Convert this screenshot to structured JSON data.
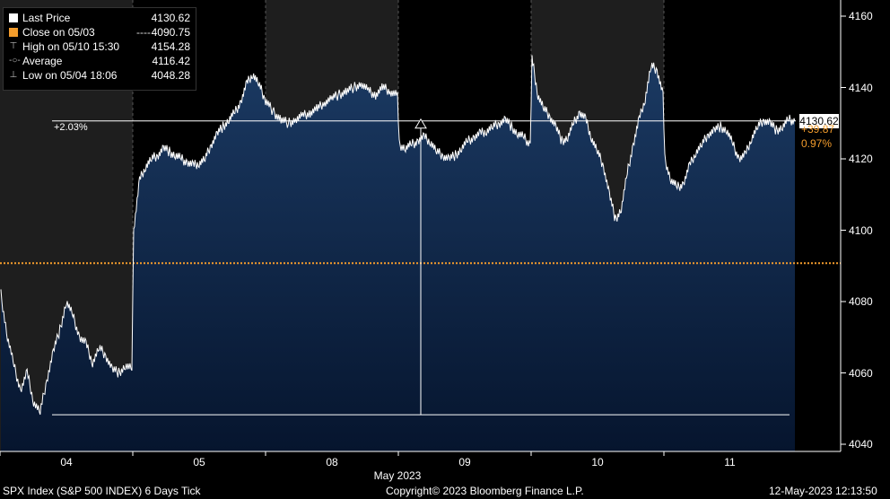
{
  "legend": {
    "last_label": "Last Price",
    "last_value": "4130.62",
    "close_label": "Close on 05/03",
    "close_dash": "----",
    "close_value": "4090.75",
    "high_label": "High on 05/10 15:30",
    "high_value": "4154.28",
    "avg_label": "Average",
    "avg_value": "4116.42",
    "low_label": "Low on 05/04 18:06",
    "low_value": "4048.28",
    "high_icon": "high-marker-icon",
    "avg_icon": "average-marker-icon",
    "low_icon": "low-marker-icon"
  },
  "annotations": {
    "range_pct": "+2.03%",
    "last_price_tag": "4130.62",
    "change_abs": "+39.87",
    "change_pct": "0.97%"
  },
  "footer": {
    "left": "SPX Index (S&P 500 INDEX) 6 Days  Tick",
    "center": "Copyright© 2023 Bloomberg Finance L.P.",
    "right": "12-May-2023 12:13:50"
  },
  "colors": {
    "background": "#000000",
    "closed_session": "#1e1e1e",
    "area_fill": "#0b2546",
    "price_line": "#ffffff",
    "close_line": "#f39c2c",
    "change_text": "#f39c2c"
  },
  "chart_data": {
    "type": "area",
    "title": "",
    "xlabel": "May 2023",
    "ylabel": "",
    "ylim": [
      4039,
      4164
    ],
    "yticks": [
      4040,
      4060,
      4080,
      4100,
      4120,
      4140,
      4160
    ],
    "ytick_labels": [
      "4040",
      "4060",
      "4080",
      "4100",
      "4120",
      "4140",
      "4160"
    ],
    "categories": [
      "04",
      "05",
      "08",
      "09",
      "10",
      "11"
    ],
    "sessions": [
      {
        "label": "04",
        "price": [
          4082,
          4070,
          4062,
          4055,
          4060,
          4052,
          4049,
          4058,
          4066,
          4072,
          4080,
          4076,
          4070,
          4068,
          4063,
          4067,
          4065,
          4061,
          4060,
          4062,
          4061
        ]
      },
      {
        "label": "05",
        "price": [
          4100,
          4114,
          4118,
          4120,
          4121,
          4123,
          4122,
          4121,
          4120,
          4119,
          4118,
          4119,
          4120,
          4124,
          4127,
          4129,
          4131,
          4133,
          4136,
          4141,
          4144,
          4141,
          4137
        ]
      },
      {
        "label": "08",
        "price": [
          4136,
          4133,
          4131,
          4130,
          4131,
          4132,
          4133,
          4134,
          4136,
          4137,
          4138,
          4139,
          4140,
          4141,
          4139,
          4138,
          4140,
          4139,
          4138
        ]
      },
      {
        "label": "09",
        "price": [
          4124,
          4123,
          4124,
          4125,
          4126,
          4125,
          4122,
          4121,
          4120,
          4121,
          4123,
          4125,
          4126,
          4127,
          4128,
          4129,
          4130,
          4131,
          4129,
          4127,
          4126,
          4124
        ]
      },
      {
        "label": "10",
        "price": [
          4148,
          4138,
          4134,
          4132,
          4129,
          4125,
          4126,
          4130,
          4133,
          4131,
          4126,
          4122,
          4118,
          4110,
          4103,
          4106,
          4116,
          4124,
          4131,
          4137,
          4146,
          4145,
          4138
        ]
      },
      {
        "label": "11",
        "price": [
          4120,
          4114,
          4112,
          4113,
          4118,
          4122,
          4124,
          4127,
          4128,
          4129,
          4128,
          4124,
          4120,
          4121,
          4126,
          4129,
          4131,
          4130,
          4128,
          4129,
          4131,
          4130.62
        ]
      }
    ],
    "previous_close": 4090.75,
    "last_price": 4130.62,
    "high": 4154.28,
    "average": 4116.42,
    "low": 4048.28,
    "grid": false,
    "legend_position": "top-left"
  }
}
